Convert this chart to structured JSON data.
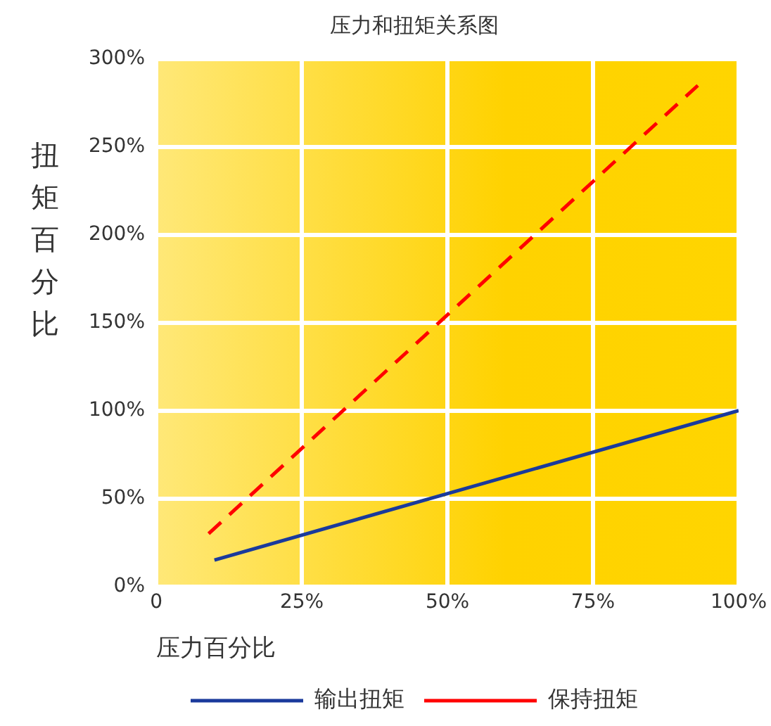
{
  "chart_data": {
    "type": "line",
    "title": "压力和扭矩关系图",
    "xlabel": "压力百分比",
    "ylabel": "扭矩百分比",
    "xlim": [
      0,
      100
    ],
    "xticks": [
      {
        "value": 0,
        "label": "0"
      },
      {
        "value": 25,
        "label": "25%"
      },
      {
        "value": 50,
        "label": "50%"
      },
      {
        "value": 75,
        "label": "75%"
      },
      {
        "value": 100,
        "label": "100%"
      }
    ],
    "ylim": [
      0,
      300
    ],
    "yticks": [
      {
        "value": 0,
        "label": "0%"
      },
      {
        "value": 50,
        "label": "50%"
      },
      {
        "value": 100,
        "label": "100%"
      },
      {
        "value": 150,
        "label": "150%"
      },
      {
        "value": 200,
        "label": "200%"
      },
      {
        "value": 250,
        "label": "250%"
      },
      {
        "value": 300,
        "label": "300%"
      }
    ],
    "series": [
      {
        "name": "输出扭矩",
        "color": "#1a3a9c",
        "x": [
          10,
          100
        ],
        "values": [
          15,
          100
        ],
        "line_style": "solid"
      },
      {
        "name": "保持扭矩",
        "color": "#ff0000",
        "x": [
          9,
          93
        ],
        "values": [
          30,
          285
        ],
        "line_style": "dashed"
      }
    ],
    "grid": true,
    "legend": "bottom",
    "marker": "none"
  }
}
